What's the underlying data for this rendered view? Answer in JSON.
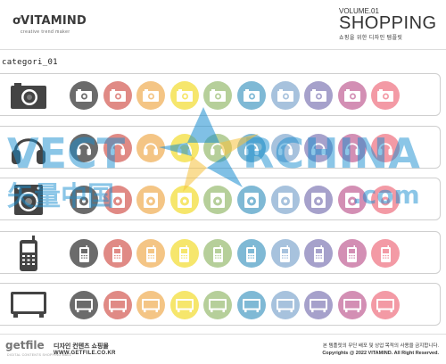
{
  "brand": {
    "name": "VITAMIND",
    "tagline": "creative trend maker"
  },
  "volume": {
    "label": "VOLUME.01",
    "title": "SHOPPING",
    "subtitle": "쇼핑을 위한 디자인 템플릿"
  },
  "category_label": "categori_01",
  "palette": [
    "#6b6b6b",
    "#e08a85",
    "#f4c585",
    "#f6e66c",
    "#b6cf9a",
    "#7fb9d5",
    "#a7c2dd",
    "#a6a1cb",
    "#d38fb4",
    "#f39aa5"
  ],
  "rows": [
    {
      "name": "camera",
      "icon": "camera-icon"
    },
    {
      "name": "headphones",
      "icon": "headphones-icon"
    },
    {
      "name": "speaker",
      "icon": "speaker-icon"
    },
    {
      "name": "phone",
      "icon": "mobile-phone-icon"
    },
    {
      "name": "monitor",
      "icon": "monitor-icon"
    }
  ],
  "footer": {
    "logo": "getfile",
    "logo_sub": "DIGITAL CONTENTS SHOPPING MALL",
    "title": "디자인 컨텐츠 쇼핑몰",
    "url": "WWW.GETFILE.CO.KR",
    "notice": "본 템플릿의 무단 배포 및 상업 목적의 사용을 금지합니다.",
    "copyright": "Copyrights @ 2022 VITAMIND. All Right Reserved."
  },
  "watermark": {
    "text_left": "VECT",
    "text_right": "RCHINA",
    "text_sub": "矢量中国",
    "text_com": ".com"
  }
}
